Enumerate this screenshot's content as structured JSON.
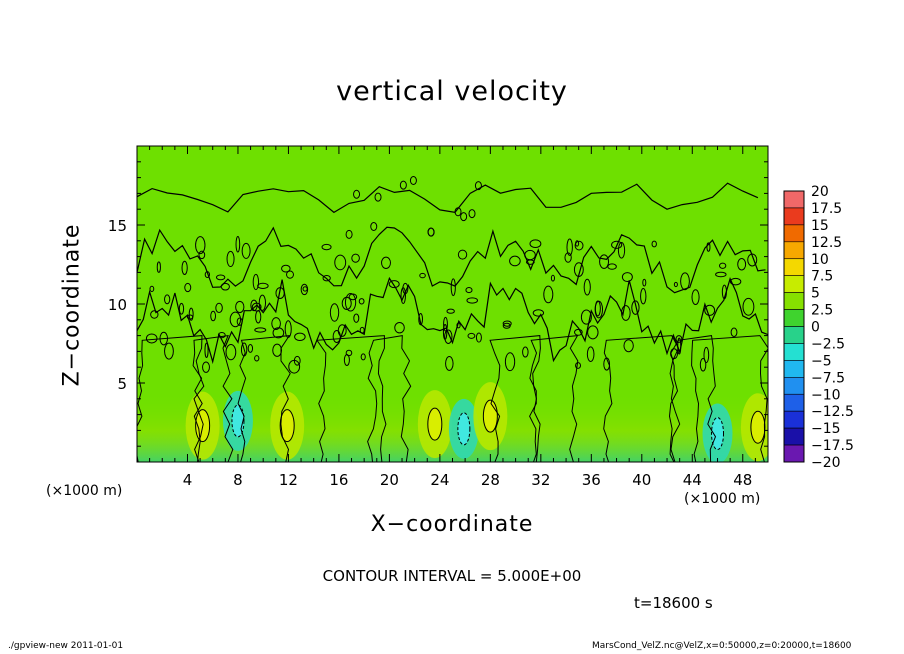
{
  "chart_data": {
    "type": "heatmap",
    "title": "vertical velocity",
    "xlabel": "X−coordinate",
    "ylabel": "Z−coordinate",
    "x_unit_label_left": "(×1000 m)",
    "x_unit_label_right": "(×1000 m)",
    "xlim": [
      0,
      50
    ],
    "ylim": [
      0,
      20
    ],
    "x_ticks": [
      4,
      8,
      12,
      16,
      20,
      24,
      28,
      32,
      36,
      40,
      44,
      48
    ],
    "y_ticks": [
      5,
      10,
      15
    ],
    "contour_interval_text": "CONTOUR INTERVAL = 5.000E+00",
    "time_text": "t=18600 s",
    "colorbar": {
      "labels": [
        "20",
        "17.5",
        "15",
        "12.5",
        "10",
        "7.5",
        "5",
        "2.5",
        "0",
        "−2.5",
        "−5",
        "−7.5",
        "−10",
        "−12.5",
        "−15",
        "−17.5",
        "−20"
      ],
      "colors": [
        "#f7a0a0",
        "#f06868",
        "#ea3b1e",
        "#f06a00",
        "#f7a800",
        "#f4d800",
        "#c7ec00",
        "#86e000",
        "#3fd32e",
        "#28d28a",
        "#24e0d2",
        "#20b8f0",
        "#2090f0",
        "#1e60e8",
        "#1a30d8",
        "#1a10a8",
        "#6a18b0"
      ]
    },
    "background_color": "#6ee000",
    "contour_color": "#000000"
  },
  "footer": {
    "left": "./gpview-new  2011-01-01",
    "right": "MarsCond_VelZ.nc@VelZ,x=0:50000,z=0:20000,t=18600"
  },
  "strong_cells": [
    {
      "x": 5.2,
      "z": 2.3,
      "sign": 1
    },
    {
      "x": 8.0,
      "z": 2.6,
      "sign": -1
    },
    {
      "x": 11.9,
      "z": 2.3,
      "sign": 1
    },
    {
      "x": 23.6,
      "z": 2.4,
      "sign": 1
    },
    {
      "x": 25.9,
      "z": 2.1,
      "sign": -1
    },
    {
      "x": 28.0,
      "z": 2.9,
      "sign": 1
    },
    {
      "x": 46.0,
      "z": 1.8,
      "sign": -1
    },
    {
      "x": 49.2,
      "z": 2.2,
      "sign": 1
    }
  ]
}
